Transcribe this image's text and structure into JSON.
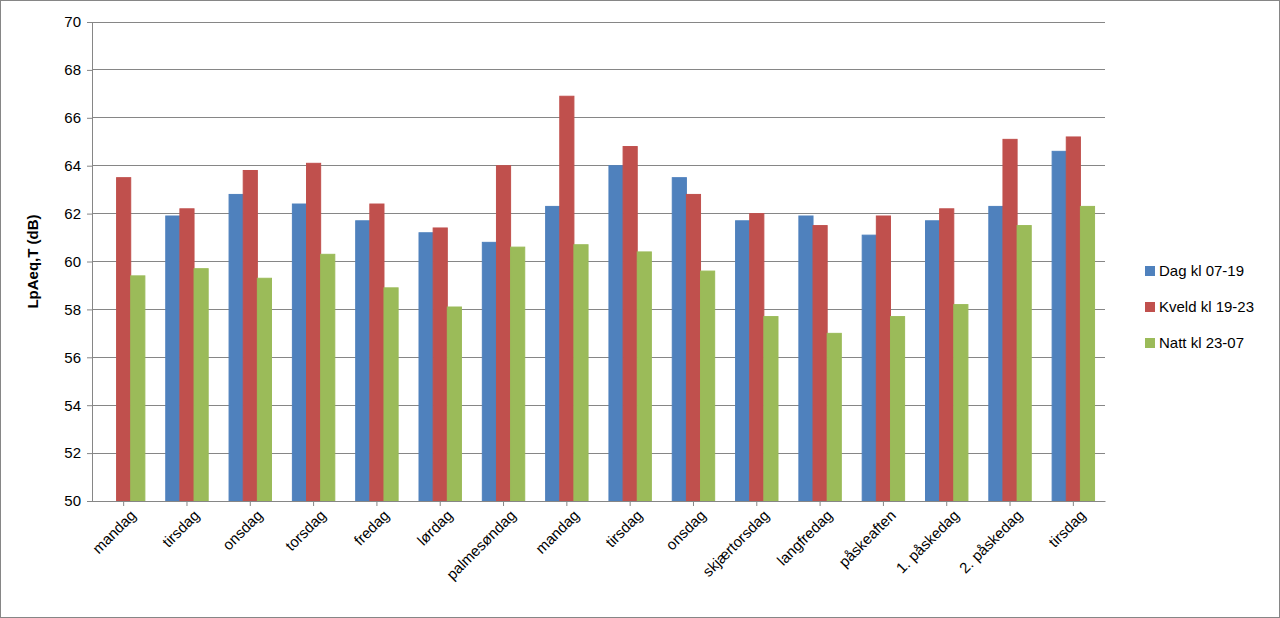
{
  "chart_data": {
    "type": "bar",
    "y_label": "LpAeq,T (dB)",
    "categories": [
      "mandag",
      "tirsdag",
      "onsdag",
      "torsdag",
      "fredag",
      "lørdag",
      "palmesøndag",
      "mandag",
      "tirsdag",
      "onsdag",
      "skjærtorsdag",
      "langfredag",
      "påskeaften",
      "1. påskedag",
      "2. påskedag",
      "tirsdag"
    ],
    "series": [
      {
        "name": "Dag kl 07-19",
        "color": "#4f81bd",
        "values": [
          50,
          61.9,
          62.8,
          62.4,
          61.7,
          61.2,
          60.8,
          62.3,
          64.0,
          63.5,
          61.7,
          61.9,
          61.1,
          61.7,
          62.3,
          64.6
        ]
      },
      {
        "name": "Kveld kl 19-23",
        "color": "#c0504d",
        "values": [
          63.5,
          62.2,
          63.8,
          64.1,
          62.4,
          61.4,
          64.0,
          66.9,
          64.8,
          62.8,
          62.0,
          61.5,
          61.9,
          62.2,
          65.1,
          65.2
        ]
      },
      {
        "name": "Natt kl 23-07",
        "color": "#9bbb59",
        "values": [
          59.4,
          59.7,
          59.3,
          60.3,
          58.9,
          58.1,
          60.6,
          60.7,
          60.4,
          59.6,
          57.7,
          57.0,
          57.7,
          58.2,
          61.5,
          62.3
        ]
      }
    ],
    "ylim": [
      50,
      70
    ],
    "yticks": [
      50,
      52,
      54,
      56,
      58,
      60,
      62,
      64,
      66,
      68,
      70
    ],
    "grid": true,
    "legend": "right"
  }
}
